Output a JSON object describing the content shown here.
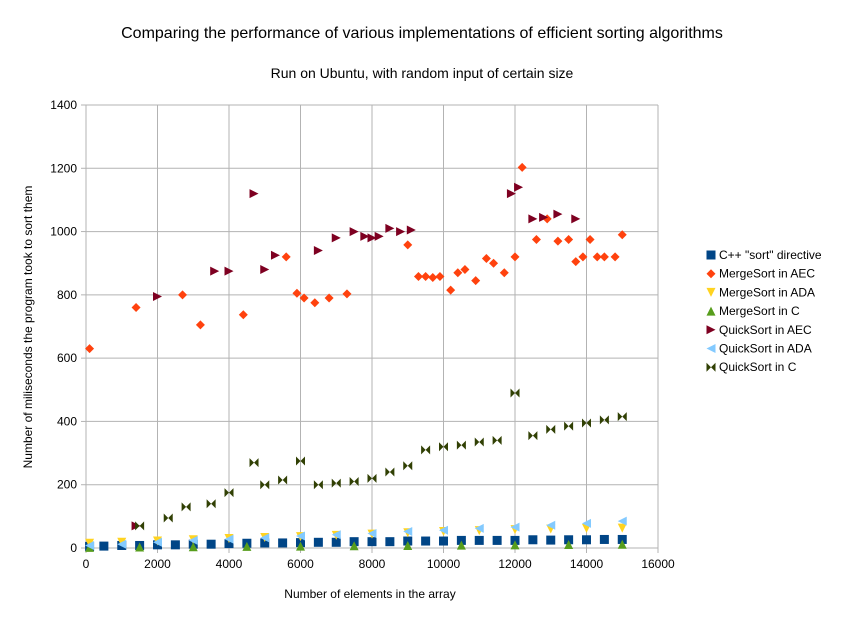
{
  "chart_data": {
    "type": "scatter",
    "title": "Comparing the performance of various implementations of efficient sorting algorithms",
    "subtitle": "Run on Ubuntu, with random input of certain size",
    "xlabel": "Number of elements in the array",
    "ylabel": "Number of miliseconds the program took to sort them",
    "xlim": [
      0,
      16000
    ],
    "ylim": [
      0,
      1400
    ],
    "xticks": [
      0,
      2000,
      4000,
      6000,
      8000,
      10000,
      12000,
      14000,
      16000
    ],
    "yticks": [
      0,
      200,
      400,
      600,
      800,
      1000,
      1200,
      1400
    ],
    "xtick_labels": [
      "0",
      "2000",
      "4000",
      "6000",
      "8000",
      "10000",
      "12000",
      "14000",
      "16000"
    ],
    "ytick_labels": [
      "0",
      "200",
      "400",
      "600",
      "800",
      "1000",
      "1200",
      "1400"
    ],
    "grid": true,
    "legend_position": "right",
    "series": [
      {
        "name": "C++ \"sort\" directive",
        "color": "#004586",
        "marker": "square",
        "x": [
          100,
          500,
          1000,
          1500,
          2000,
          2500,
          3000,
          3500,
          4000,
          4500,
          5000,
          5500,
          6000,
          6500,
          7000,
          7500,
          8000,
          8500,
          9000,
          9500,
          10000,
          10500,
          11000,
          11500,
          12000,
          12500,
          13000,
          13500,
          14000,
          14500,
          15000
        ],
        "y": [
          5,
          6,
          8,
          8,
          10,
          10,
          12,
          12,
          14,
          15,
          16,
          16,
          17,
          18,
          18,
          20,
          20,
          20,
          22,
          22,
          22,
          24,
          24,
          24,
          24,
          26,
          25,
          26,
          26,
          27,
          27
        ]
      },
      {
        "name": "MergeSort in AEC",
        "color": "#ff420e",
        "marker": "diamond",
        "x": [
          100,
          1400,
          2700,
          3200,
          4400,
          5600,
          5900,
          6100,
          6400,
          6800,
          7300,
          9000,
          9300,
          9500,
          9700,
          9900,
          10200,
          10400,
          10600,
          10900,
          11200,
          11400,
          11700,
          12000,
          12200,
          12600,
          12900,
          13200,
          13500,
          13700,
          13900,
          14100,
          14300,
          14500,
          14800,
          15000
        ],
        "y": [
          630,
          760,
          800,
          705,
          737,
          920,
          805,
          790,
          775,
          790,
          803,
          958,
          858,
          858,
          855,
          858,
          815,
          870,
          880,
          845,
          915,
          900,
          870,
          920,
          1203,
          975,
          1040,
          970,
          975,
          905,
          920,
          975,
          920,
          920,
          920,
          990
        ]
      },
      {
        "name": "MergeSort in ADA",
        "color": "#ffd320",
        "marker": "triangle-down",
        "x": [
          100,
          1000,
          2000,
          3000,
          4000,
          5000,
          6000,
          7000,
          8000,
          9000,
          10000,
          11000,
          12000,
          13000,
          14000,
          15000
        ],
        "y": [
          15,
          18,
          22,
          26,
          30,
          33,
          36,
          40,
          44,
          48,
          52,
          55,
          58,
          60,
          62,
          63
        ]
      },
      {
        "name": "MergeSort in C",
        "color": "#579d1c",
        "marker": "triangle-up",
        "x": [
          100,
          1500,
          3000,
          4500,
          6000,
          7500,
          9000,
          10500,
          12000,
          13500,
          15000
        ],
        "y": [
          2,
          3,
          4,
          5,
          6,
          7,
          8,
          9,
          10,
          11,
          12
        ]
      },
      {
        "name": "QuickSort in AEC",
        "color": "#7e0021",
        "marker": "triangle-right",
        "x": [
          1400,
          2000,
          3600,
          4000,
          4700,
          5000,
          5300,
          6500,
          7000,
          7500,
          7800,
          8000,
          8200,
          8500,
          8800,
          9100,
          11900,
          12100,
          12500,
          12800,
          13200,
          13700
        ],
        "y": [
          70,
          795,
          875,
          875,
          1120,
          880,
          925,
          940,
          980,
          1000,
          985,
          980,
          985,
          1010,
          1000,
          1005,
          1120,
          1140,
          1040,
          1045,
          1055,
          1040
        ]
      },
      {
        "name": "QuickSort in ADA",
        "color": "#83caff",
        "marker": "triangle-left",
        "x": [
          100,
          1000,
          2000,
          3000,
          4000,
          5000,
          6000,
          7000,
          8000,
          9000,
          10000,
          11000,
          12000,
          13000,
          14000,
          15000
        ],
        "y": [
          8,
          12,
          18,
          24,
          28,
          32,
          38,
          42,
          46,
          52,
          56,
          62,
          66,
          72,
          78,
          85
        ]
      },
      {
        "name": "QuickSort in C",
        "color": "#314004",
        "marker": "bowtie",
        "x": [
          1500,
          2300,
          2800,
          3500,
          4000,
          4700,
          5000,
          5500,
          6000,
          6500,
          7000,
          7500,
          8000,
          8500,
          9000,
          9500,
          10000,
          10500,
          11000,
          11500,
          12000,
          12500,
          13000,
          13500,
          14000,
          14500,
          15000
        ],
        "y": [
          70,
          95,
          130,
          140,
          175,
          270,
          200,
          215,
          275,
          200,
          205,
          210,
          220,
          240,
          260,
          310,
          320,
          325,
          335,
          340,
          490,
          355,
          375,
          385,
          395,
          405,
          415
        ]
      }
    ]
  }
}
